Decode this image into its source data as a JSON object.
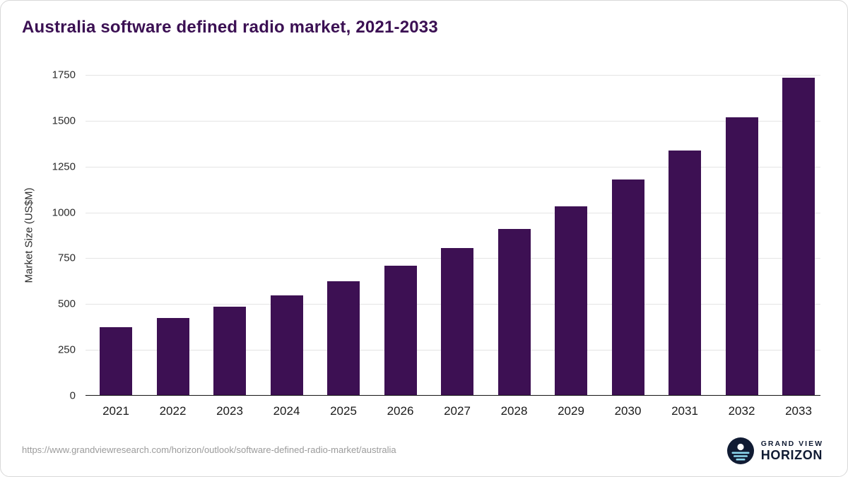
{
  "chart_data": {
    "type": "bar",
    "title": "Australia software defined radio market, 2021-2033",
    "categories": [
      "2021",
      "2022",
      "2023",
      "2024",
      "2025",
      "2026",
      "2027",
      "2028",
      "2029",
      "2030",
      "2031",
      "2032",
      "2033"
    ],
    "values": [
      370,
      420,
      480,
      545,
      620,
      705,
      800,
      905,
      1030,
      1175,
      1335,
      1515,
      1730
    ],
    "xlabel": "",
    "ylabel": "Market Size (US$M)",
    "ylim": [
      0,
      1750
    ],
    "ytick_step": 250,
    "grid": "horizontal",
    "legend": "none",
    "bar_color": "#3d1053"
  },
  "footer": {
    "source_url": "https://www.grandviewresearch.com/horizon/outlook/software-defined-radio-market/australia",
    "logo": {
      "line1": "GRAND VIEW",
      "line2": "HORIZON",
      "icon": "grand-view-horizon-circle-icon",
      "navy": "#101b33",
      "light_blue": "#8ed8ee"
    }
  }
}
